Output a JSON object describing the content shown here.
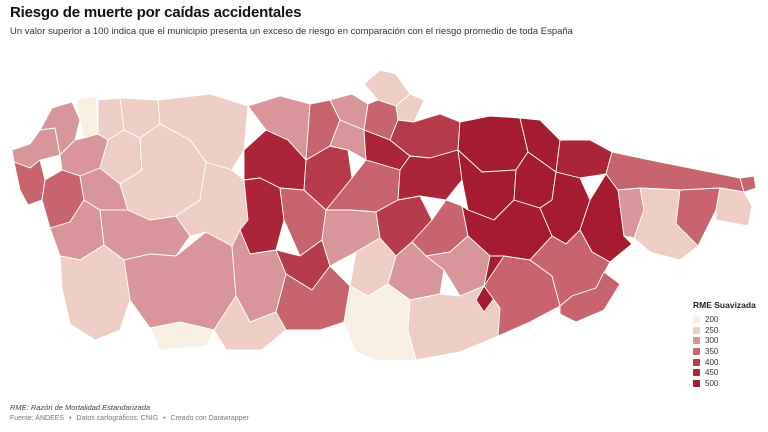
{
  "header": {
    "title": "Riesgo de muerte por caídas accidentales",
    "subtitle": "Un valor superior a 100 indica que el municipio presenta un exceso de riesgo en comparación con el riesgo promedio de toda España"
  },
  "legend": {
    "title": "RME Suavizada",
    "items": [
      {
        "label": "200",
        "color": "#f8f0e2"
      },
      {
        "label": "250",
        "color": "#edcdc4"
      },
      {
        "label": "300",
        "color": "#d8969a"
      },
      {
        "label": "350",
        "color": "#c8646d"
      },
      {
        "label": "400",
        "color": "#b63c4c"
      },
      {
        "label": "450",
        "color": "#ab2438"
      },
      {
        "label": "500",
        "color": "#a51c30"
      }
    ]
  },
  "note": "RME: Razón de Mortalidad Estandarizada",
  "footer": {
    "source": "Fuente: ANDEES",
    "map_data": "Datos cartográficos: CNIG",
    "credit": "Creado con Datawrapper",
    "separator": "•"
  }
}
